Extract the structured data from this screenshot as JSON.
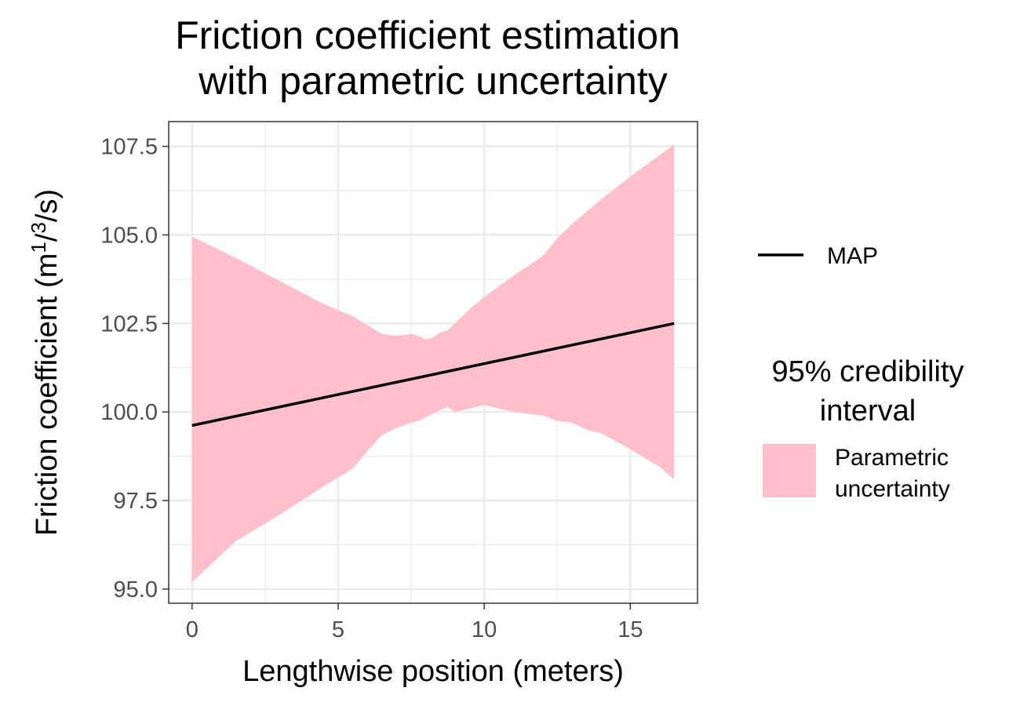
{
  "chart_data": {
    "type": "line",
    "title": [
      "Friction coefficient estimation",
      "with parametric uncertainty"
    ],
    "xlabel": "Lengthwise position (meters)",
    "ylabel": {
      "prefix": "Friction coefficient (m",
      "superscript": "1",
      "slash": "/",
      "superscript2": "3",
      "suffix": "/s)"
    },
    "xlim": [
      -0.8,
      17.3
    ],
    "ylim": [
      94.6,
      108.2
    ],
    "x_ticks": [
      0,
      5,
      10,
      15
    ],
    "x_tick_labels": [
      "0",
      "5",
      "10",
      "15"
    ],
    "y_ticks": [
      95.0,
      97.5,
      100.0,
      102.5,
      105.0,
      107.5
    ],
    "y_tick_labels": [
      "95.0",
      "97.5",
      "100.0",
      "102.5",
      "105.0",
      "107.5"
    ],
    "grid": true,
    "legend_position": "right",
    "series": [
      {
        "name": "MAP",
        "type": "line",
        "color": "#000000",
        "x": [
          0,
          16.5
        ],
        "y": [
          99.62,
          102.5
        ]
      },
      {
        "name": "Parametric uncertainty",
        "type": "ribbon",
        "color": "#ffc0cb",
        "x": [
          0,
          1.5,
          3,
          4.5,
          5.5,
          6,
          6.5,
          7,
          7.5,
          7.75,
          8,
          8.25,
          8.5,
          8.75,
          9,
          9.5,
          10,
          11,
          12,
          12.5,
          13,
          13.5,
          14,
          15,
          16,
          16.5
        ],
        "lower": [
          95.2,
          96.35,
          97.1,
          97.9,
          98.4,
          98.9,
          99.35,
          99.55,
          99.7,
          99.75,
          99.85,
          99.95,
          100.05,
          100.15,
          100.0,
          100.1,
          100.2,
          100.0,
          99.9,
          99.75,
          99.7,
          99.5,
          99.4,
          98.95,
          98.45,
          98.1
        ],
        "upper": [
          104.95,
          104.35,
          103.7,
          103.05,
          102.7,
          102.45,
          102.2,
          102.15,
          102.2,
          102.15,
          102.05,
          102.1,
          102.25,
          102.3,
          102.5,
          102.9,
          103.25,
          103.85,
          104.4,
          104.9,
          105.3,
          105.65,
          106.0,
          106.65,
          107.25,
          107.55
        ]
      }
    ],
    "legend": {
      "line_entry": "MAP",
      "fill_title": [
        "95% credibility",
        "interval"
      ],
      "fill_entry": [
        "Parametric",
        "uncertainty"
      ]
    }
  }
}
